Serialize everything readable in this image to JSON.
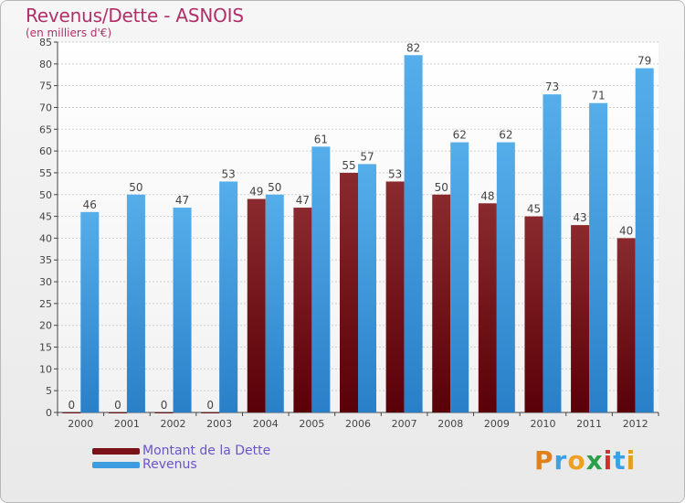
{
  "title": "Revenus/Dette - ASNOIS",
  "subtitle": "(en milliers d'€)",
  "colors": {
    "dette": "#7a1218",
    "revenus": "#3d9be0",
    "axis": "#444444",
    "grid": "#d0d0d0"
  },
  "legend": {
    "dette_label": "Montant de la Dette",
    "revenus_label": "Revenus"
  },
  "logo": {
    "letters": [
      "P",
      "r",
      "o",
      "x",
      "i",
      "t",
      "i"
    ]
  },
  "chart_data": {
    "type": "bar",
    "title": "Revenus/Dette - ASNOIS",
    "subtitle": "(en milliers d'€)",
    "categories": [
      "2000",
      "2001",
      "2002",
      "2003",
      "2004",
      "2005",
      "2006",
      "2007",
      "2008",
      "2009",
      "2010",
      "2011",
      "2012"
    ],
    "series": [
      {
        "name": "Montant de la Dette",
        "values": [
          0,
          0,
          0,
          0,
          49,
          47,
          55,
          53,
          50,
          48,
          45,
          43,
          40
        ]
      },
      {
        "name": "Revenus",
        "values": [
          46,
          50,
          47,
          53,
          50,
          61,
          57,
          82,
          62,
          62,
          73,
          71,
          79
        ]
      }
    ],
    "ylim": [
      0,
      85
    ],
    "yticks": [
      0,
      5,
      10,
      15,
      20,
      25,
      30,
      35,
      40,
      45,
      50,
      55,
      60,
      65,
      70,
      75,
      80,
      85
    ],
    "grid": true,
    "legend_position": "bottom-left"
  }
}
